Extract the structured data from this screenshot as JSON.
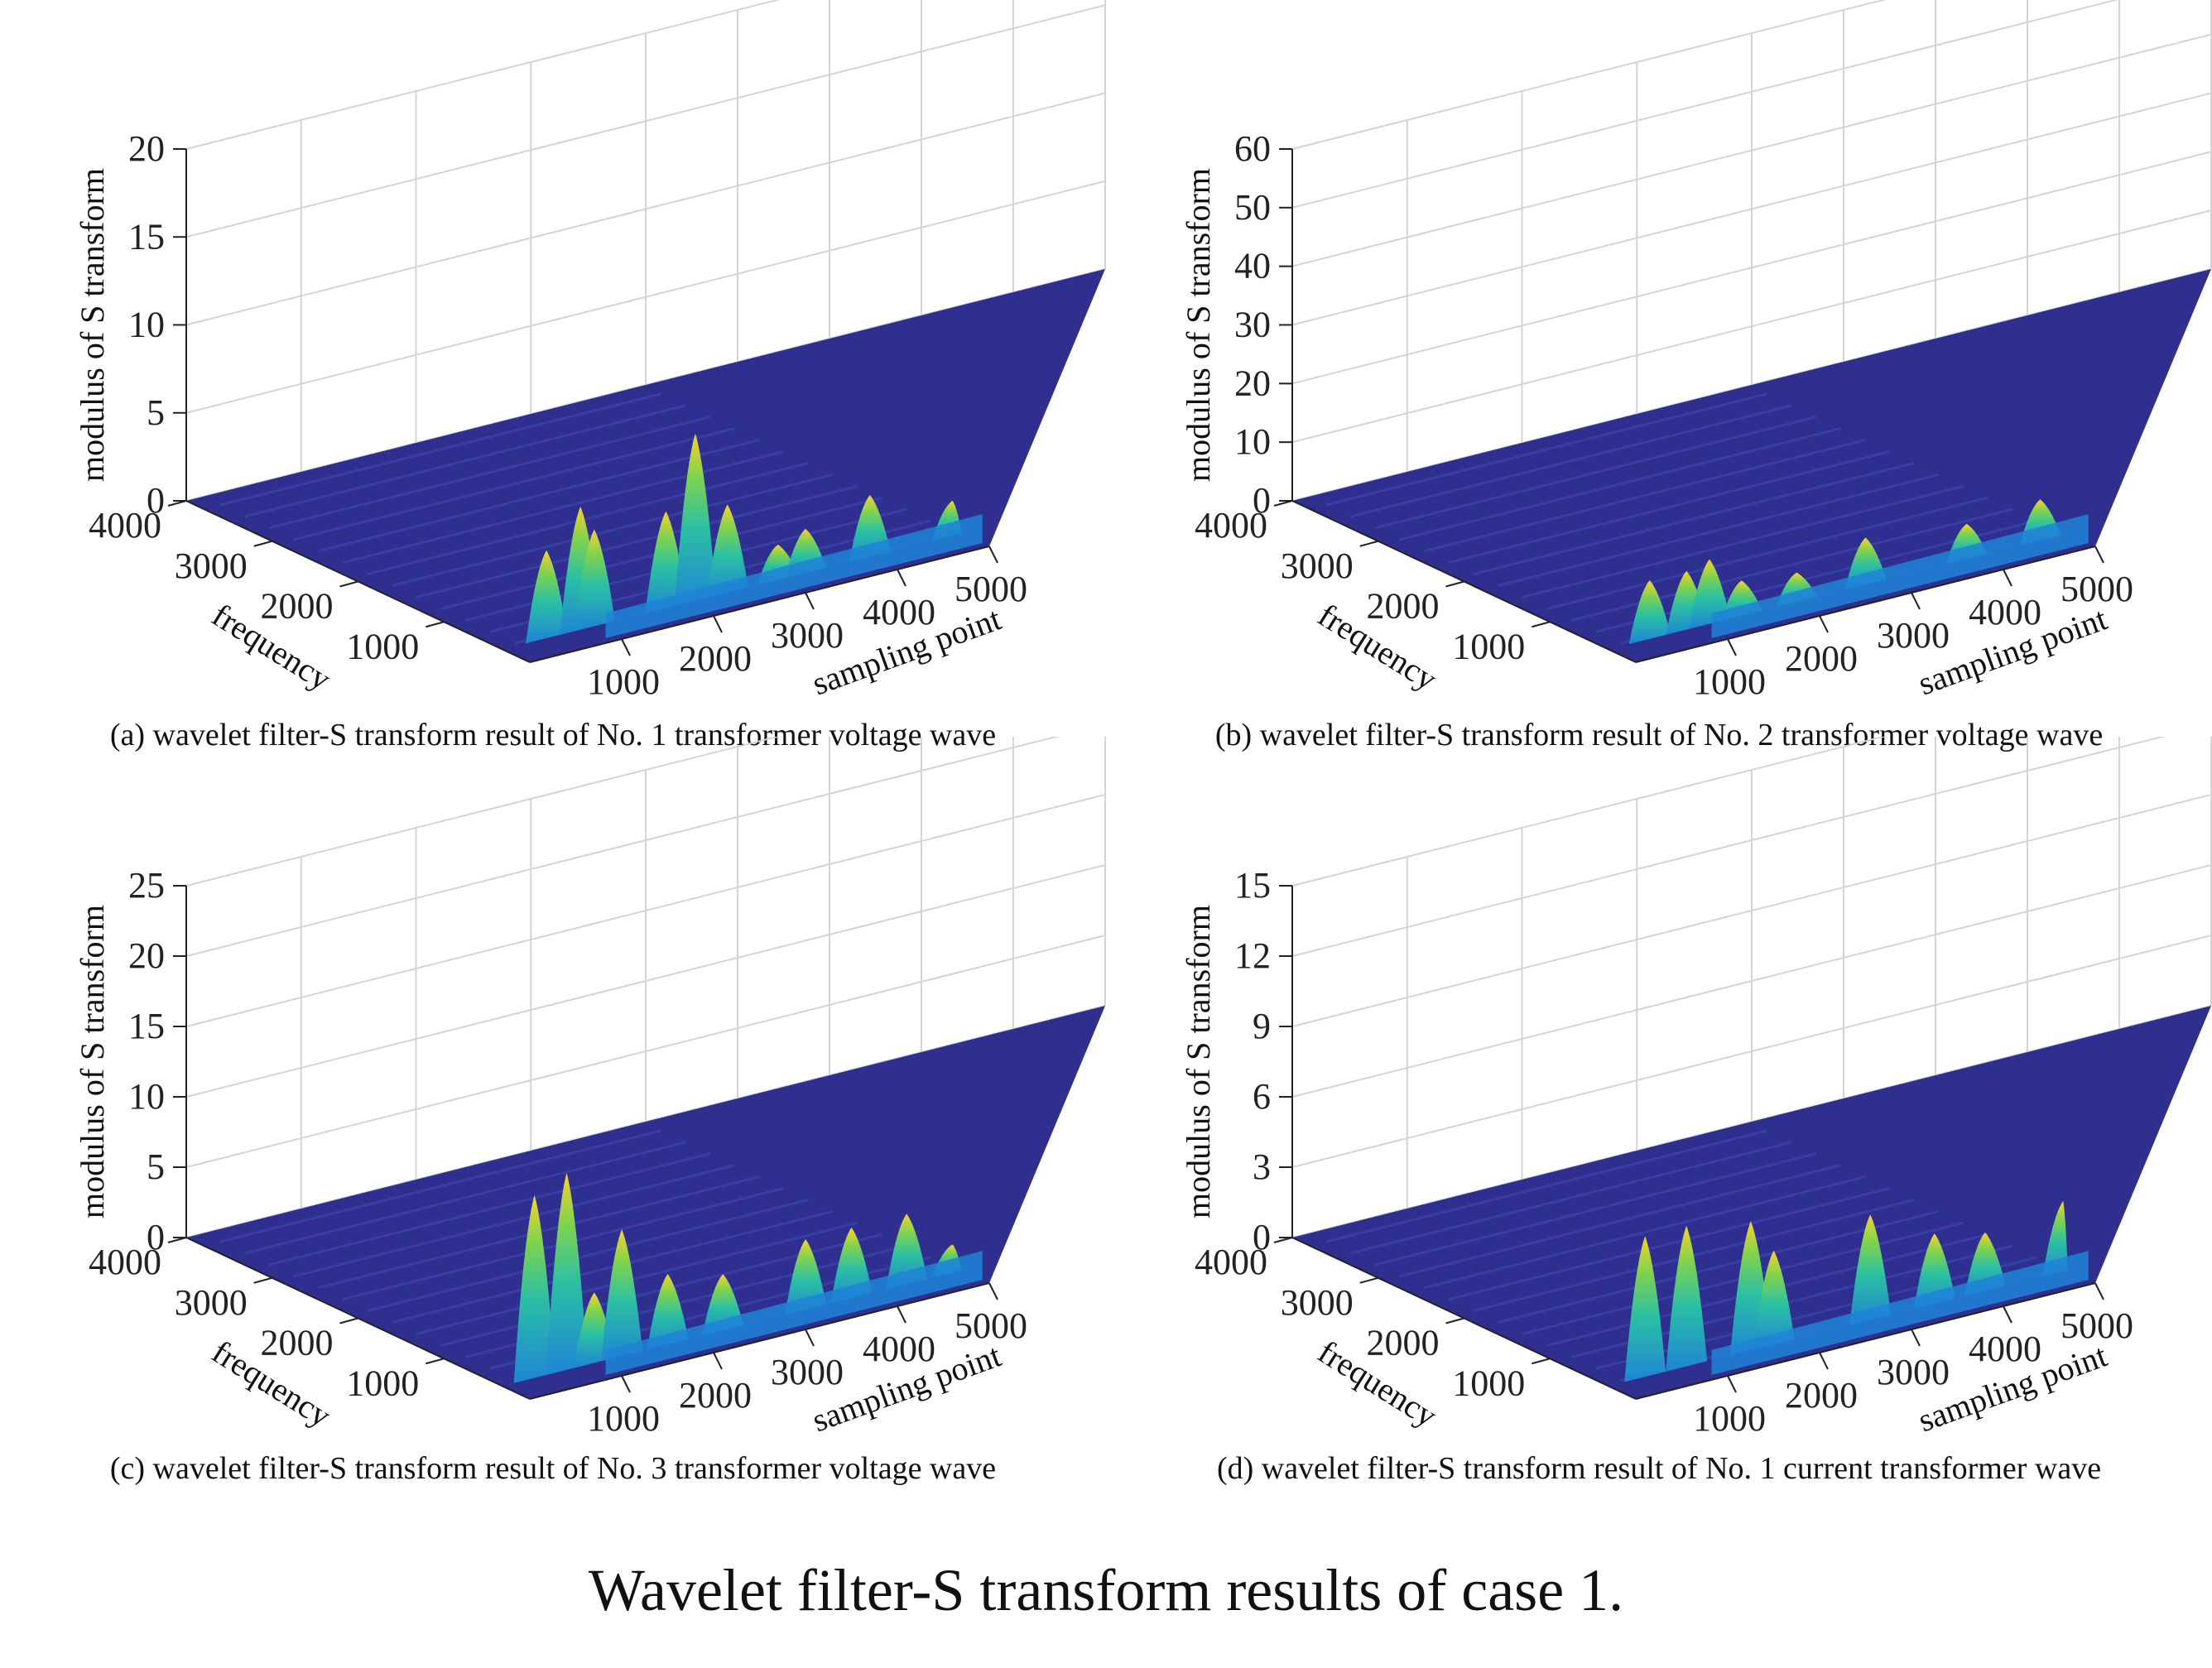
{
  "figure_title": "Wavelet filter-S transform results of case 1.",
  "colors": {
    "base": "#2e2f8f",
    "mid": "#1f84d6",
    "teal": "#2bc0a4",
    "peak": "#f8d22a",
    "grid": "#d4d4d4"
  },
  "chart_data": [
    {
      "type": "surface3d",
      "caption": "(a) wavelet filter-S transform result of No. 1 transformer voltage wave",
      "zlabel": "modulus of S transform",
      "ylabel": "frequency",
      "xlabel": "sampling point",
      "zticks": [
        "0",
        "5",
        "10",
        "15",
        "20"
      ],
      "zlim": [
        0,
        20
      ],
      "yticks": [
        "4000",
        "3000",
        "2000",
        "1000"
      ],
      "xticks": [
        "1000",
        "2000",
        "3000",
        "4000",
        "5000"
      ],
      "ylim": [
        0,
        4000
      ],
      "xlim": [
        0,
        5000
      ],
      "peaks": [
        {
          "x": 480,
          "z": 5
        },
        {
          "x": 850,
          "z": 7
        },
        {
          "x": 1000,
          "z": 5.5
        },
        {
          "x": 1780,
          "z": 5.5
        },
        {
          "x": 2100,
          "z": 9.5
        },
        {
          "x": 2450,
          "z": 5
        },
        {
          "x": 3000,
          "z": 2
        },
        {
          "x": 3300,
          "z": 2.5
        },
        {
          "x": 4000,
          "z": 3.5
        },
        {
          "x": 4900,
          "z": 2
        }
      ]
    },
    {
      "type": "surface3d",
      "caption": "(b) wavelet filter-S transform result of No. 2 transformer voltage wave",
      "zlabel": "modulus of S transform",
      "ylabel": "frequency",
      "xlabel": "sampling point",
      "zticks": [
        "0",
        "10",
        "20",
        "30",
        "40",
        "50",
        "60"
      ],
      "zlim": [
        0,
        60
      ],
      "yticks": [
        "4000",
        "3000",
        "2000",
        "1000"
      ],
      "xticks": [
        "1000",
        "2000",
        "3000",
        "4000",
        "5000"
      ],
      "ylim": [
        0,
        4000
      ],
      "xlim": [
        0,
        5000
      ],
      "peaks": [
        {
          "x": 450,
          "z": 10
        },
        {
          "x": 850,
          "z": 10
        },
        {
          "x": 1100,
          "z": 11
        },
        {
          "x": 1450,
          "z": 6
        },
        {
          "x": 2050,
          "z": 5
        },
        {
          "x": 2800,
          "z": 8
        },
        {
          "x": 3900,
          "z": 6
        },
        {
          "x": 4700,
          "z": 7
        }
      ]
    },
    {
      "type": "surface3d",
      "caption": "(c) wavelet filter-S transform result of No. 3 transformer voltage wave",
      "zlabel": "modulus of S transform",
      "ylabel": "frequency",
      "xlabel": "sampling point",
      "zticks": [
        "0",
        "5",
        "10",
        "15",
        "20",
        "25"
      ],
      "zlim": [
        0,
        25
      ],
      "yticks": [
        "4000",
        "3000",
        "2000",
        "1000"
      ],
      "xticks": [
        "1000",
        "2000",
        "3000",
        "4000",
        "5000"
      ],
      "ylim": [
        0,
        4000
      ],
      "xlim": [
        0,
        5000
      ],
      "peaks": [
        {
          "x": 350,
          "z": 13
        },
        {
          "x": 700,
          "z": 14
        },
        {
          "x": 1000,
          "z": 5
        },
        {
          "x": 1300,
          "z": 9
        },
        {
          "x": 1800,
          "z": 5
        },
        {
          "x": 2400,
          "z": 4
        },
        {
          "x": 3300,
          "z": 5
        },
        {
          "x": 3800,
          "z": 5
        },
        {
          "x": 4400,
          "z": 5
        },
        {
          "x": 4900,
          "z": 2
        }
      ]
    },
    {
      "type": "surface3d",
      "caption": "(d) wavelet filter-S transform result of No. 1 current transformer wave",
      "zlabel": "modulus of S transform",
      "ylabel": "frequency",
      "xlabel": "sampling point",
      "zticks": [
        "0",
        "3",
        "6",
        "9",
        "12",
        "15"
      ],
      "zlim": [
        0,
        15
      ],
      "yticks": [
        "4000",
        "3000",
        "2000",
        "1000"
      ],
      "xticks": [
        "1000",
        "2000",
        "3000",
        "4000",
        "5000"
      ],
      "ylim": [
        0,
        4000
      ],
      "xlim": [
        0,
        5000
      ],
      "peaks": [
        {
          "x": 400,
          "z": 6
        },
        {
          "x": 850,
          "z": 6
        },
        {
          "x": 1550,
          "z": 5.5
        },
        {
          "x": 1800,
          "z": 4
        },
        {
          "x": 2850,
          "z": 4.5
        },
        {
          "x": 3550,
          "z": 3
        },
        {
          "x": 4100,
          "z": 2.5
        },
        {
          "x": 4950,
          "z": 3
        }
      ]
    }
  ]
}
